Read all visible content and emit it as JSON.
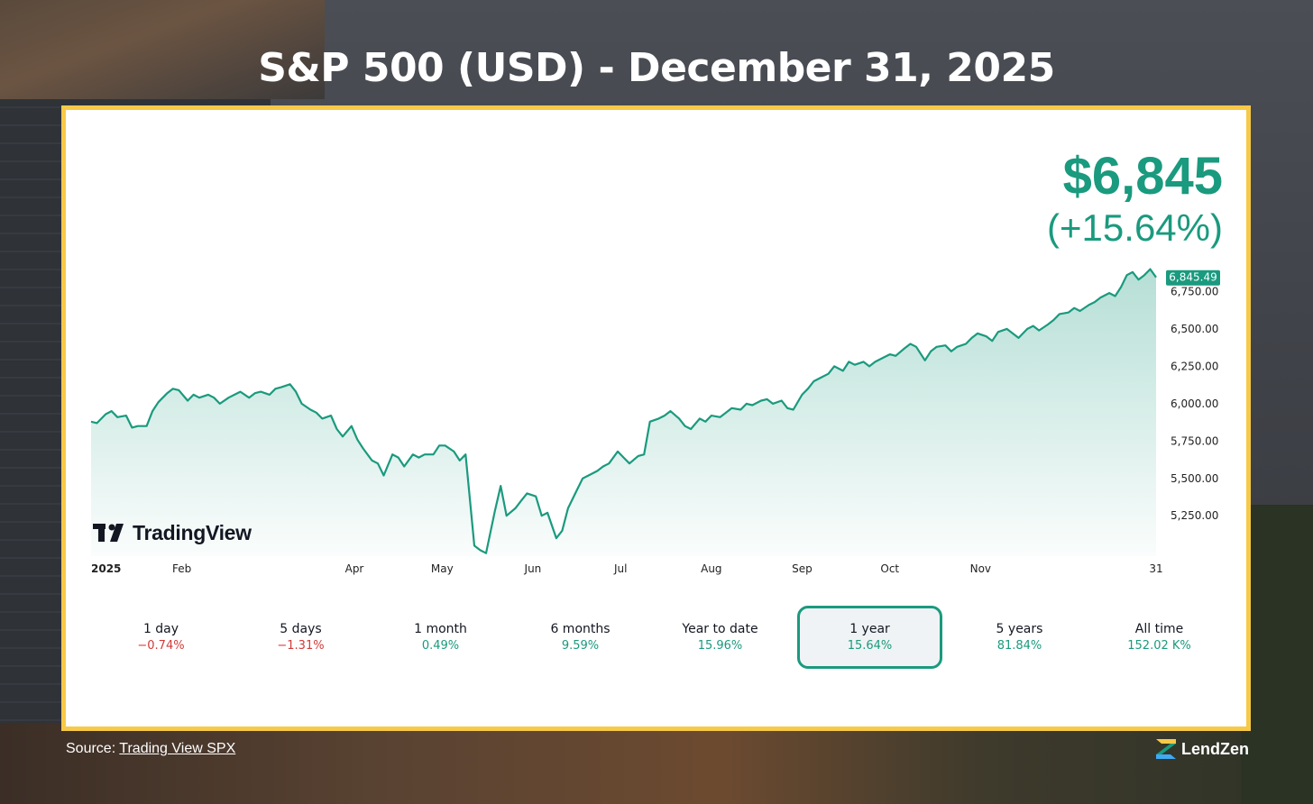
{
  "title": "S&P 500 (USD) - December 31, 2025",
  "price": {
    "value": "$6,845",
    "change": "(+15.64%)"
  },
  "last_label": "6,845.49",
  "brand_logo": "TradingView",
  "ranges": [
    {
      "label": "1 day",
      "value": "−0.74%",
      "trend": "neg",
      "active": false
    },
    {
      "label": "5 days",
      "value": "−1.31%",
      "trend": "neg",
      "active": false
    },
    {
      "label": "1 month",
      "value": "0.49%",
      "trend": "pos",
      "active": false
    },
    {
      "label": "6 months",
      "value": "9.59%",
      "trend": "pos",
      "active": false
    },
    {
      "label": "Year to date",
      "value": "15.96%",
      "trend": "pos",
      "active": false
    },
    {
      "label": "1 year",
      "value": "15.64%",
      "trend": "pos",
      "active": true
    },
    {
      "label": "5 years",
      "value": "81.84%",
      "trend": "pos",
      "active": false
    },
    {
      "label": "All time",
      "value": "152.02 K%",
      "trend": "pos",
      "active": false
    }
  ],
  "source": {
    "prefix": "Source: ",
    "link_text": "Trading View SPX"
  },
  "footer_brand": "LendZen",
  "colors": {
    "accent": "#1a9a7e",
    "negative": "#d23a3a",
    "frame": "#f7c948"
  },
  "chart_data": {
    "type": "area",
    "title": "",
    "xlabel": "",
    "ylabel": "",
    "ylim": [
      4980,
      6970
    ],
    "yticks": [
      {
        "value": 5250,
        "label": "5,250.00"
      },
      {
        "value": 5500,
        "label": "5,500.00"
      },
      {
        "value": 5750,
        "label": "5,750.00"
      },
      {
        "value": 6000,
        "label": "6,000.00"
      },
      {
        "value": 6250,
        "label": "6,250.00"
      },
      {
        "value": 6500,
        "label": "6,500.00"
      },
      {
        "value": 6750,
        "label": "6,750.00"
      }
    ],
    "xticks": [
      {
        "date": "2025-01-01",
        "label": "2025"
      },
      {
        "date": "2025-02-01",
        "label": "Feb"
      },
      {
        "date": "2025-04-01",
        "label": "Apr"
      },
      {
        "date": "2025-05-01",
        "label": "May"
      },
      {
        "date": "2025-06-01",
        "label": "Jun"
      },
      {
        "date": "2025-07-01",
        "label": "Jul"
      },
      {
        "date": "2025-08-01",
        "label": "Aug"
      },
      {
        "date": "2025-09-01",
        "label": "Sep"
      },
      {
        "date": "2025-10-01",
        "label": "Oct"
      },
      {
        "date": "2025-11-01",
        "label": "Nov"
      },
      {
        "date": "2025-12-31",
        "label": "31"
      }
    ],
    "series": [
      {
        "points": [
          [
            "2025-01-01",
            5880
          ],
          [
            "2025-01-03",
            5870
          ],
          [
            "2025-01-06",
            5930
          ],
          [
            "2025-01-08",
            5950
          ],
          [
            "2025-01-10",
            5910
          ],
          [
            "2025-01-13",
            5920
          ],
          [
            "2025-01-15",
            5840
          ],
          [
            "2025-01-17",
            5850
          ],
          [
            "2025-01-20",
            5850
          ],
          [
            "2025-01-22",
            5950
          ],
          [
            "2025-01-24",
            6010
          ],
          [
            "2025-01-27",
            6070
          ],
          [
            "2025-01-29",
            6100
          ],
          [
            "2025-01-31",
            6090
          ],
          [
            "2025-02-03",
            6020
          ],
          [
            "2025-02-05",
            6060
          ],
          [
            "2025-02-07",
            6040
          ],
          [
            "2025-02-10",
            6060
          ],
          [
            "2025-02-12",
            6040
          ],
          [
            "2025-02-14",
            6000
          ],
          [
            "2025-02-17",
            6040
          ],
          [
            "2025-02-19",
            6060
          ],
          [
            "2025-02-21",
            6080
          ],
          [
            "2025-02-24",
            6040
          ],
          [
            "2025-02-26",
            6070
          ],
          [
            "2025-02-28",
            6080
          ],
          [
            "2025-03-03",
            6060
          ],
          [
            "2025-03-05",
            6100
          ],
          [
            "2025-03-07",
            6110
          ],
          [
            "2025-03-10",
            6130
          ],
          [
            "2025-03-12",
            6080
          ],
          [
            "2025-03-14",
            6000
          ],
          [
            "2025-03-17",
            5960
          ],
          [
            "2025-03-19",
            5940
          ],
          [
            "2025-03-21",
            5900
          ],
          [
            "2025-03-24",
            5920
          ],
          [
            "2025-03-26",
            5830
          ],
          [
            "2025-03-28",
            5780
          ],
          [
            "2025-03-31",
            5850
          ],
          [
            "2025-04-02",
            5760
          ],
          [
            "2025-04-04",
            5700
          ],
          [
            "2025-04-07",
            5620
          ],
          [
            "2025-04-09",
            5600
          ],
          [
            "2025-04-11",
            5520
          ],
          [
            "2025-04-14",
            5660
          ],
          [
            "2025-04-16",
            5640
          ],
          [
            "2025-04-18",
            5580
          ],
          [
            "2025-04-21",
            5660
          ],
          [
            "2025-04-23",
            5640
          ],
          [
            "2025-04-25",
            5660
          ],
          [
            "2025-04-28",
            5660
          ],
          [
            "2025-04-30",
            5720
          ],
          [
            "2025-05-02",
            5720
          ],
          [
            "2025-05-05",
            5680
          ],
          [
            "2025-05-07",
            5620
          ],
          [
            "2025-05-09",
            5660
          ],
          [
            "2025-05-12",
            5050
          ],
          [
            "2025-05-14",
            5020
          ],
          [
            "2025-05-16",
            5000
          ],
          [
            "2025-05-19",
            5280
          ],
          [
            "2025-05-21",
            5450
          ],
          [
            "2025-05-23",
            5250
          ],
          [
            "2025-05-26",
            5300
          ],
          [
            "2025-05-28",
            5350
          ],
          [
            "2025-05-30",
            5400
          ],
          [
            "2025-06-02",
            5380
          ],
          [
            "2025-06-04",
            5250
          ],
          [
            "2025-06-06",
            5270
          ],
          [
            "2025-06-09",
            5100
          ],
          [
            "2025-06-11",
            5150
          ],
          [
            "2025-06-13",
            5300
          ],
          [
            "2025-06-16",
            5420
          ],
          [
            "2025-06-18",
            5500
          ],
          [
            "2025-06-20",
            5520
          ],
          [
            "2025-06-23",
            5550
          ],
          [
            "2025-06-25",
            5580
          ],
          [
            "2025-06-27",
            5600
          ],
          [
            "2025-06-30",
            5680
          ],
          [
            "2025-07-02",
            5640
          ],
          [
            "2025-07-04",
            5600
          ],
          [
            "2025-07-07",
            5650
          ],
          [
            "2025-07-09",
            5660
          ],
          [
            "2025-07-11",
            5880
          ],
          [
            "2025-07-14",
            5900
          ],
          [
            "2025-07-16",
            5920
          ],
          [
            "2025-07-18",
            5950
          ],
          [
            "2025-07-21",
            5900
          ],
          [
            "2025-07-23",
            5850
          ],
          [
            "2025-07-25",
            5830
          ],
          [
            "2025-07-28",
            5900
          ],
          [
            "2025-07-30",
            5880
          ],
          [
            "2025-08-01",
            5920
          ],
          [
            "2025-08-04",
            5910
          ],
          [
            "2025-08-06",
            5940
          ],
          [
            "2025-08-08",
            5970
          ],
          [
            "2025-08-11",
            5960
          ],
          [
            "2025-08-13",
            6000
          ],
          [
            "2025-08-15",
            5990
          ],
          [
            "2025-08-18",
            6020
          ],
          [
            "2025-08-20",
            6030
          ],
          [
            "2025-08-22",
            6000
          ],
          [
            "2025-08-25",
            6020
          ],
          [
            "2025-08-27",
            5970
          ],
          [
            "2025-08-29",
            5960
          ],
          [
            "2025-09-01",
            6060
          ],
          [
            "2025-09-03",
            6100
          ],
          [
            "2025-09-05",
            6150
          ],
          [
            "2025-09-08",
            6180
          ],
          [
            "2025-09-10",
            6200
          ],
          [
            "2025-09-12",
            6250
          ],
          [
            "2025-09-15",
            6220
          ],
          [
            "2025-09-17",
            6280
          ],
          [
            "2025-09-19",
            6260
          ],
          [
            "2025-09-22",
            6280
          ],
          [
            "2025-09-24",
            6250
          ],
          [
            "2025-09-26",
            6280
          ],
          [
            "2025-09-29",
            6310
          ],
          [
            "2025-10-01",
            6330
          ],
          [
            "2025-10-03",
            6320
          ],
          [
            "2025-10-06",
            6370
          ],
          [
            "2025-10-08",
            6400
          ],
          [
            "2025-10-10",
            6380
          ],
          [
            "2025-10-13",
            6290
          ],
          [
            "2025-10-15",
            6350
          ],
          [
            "2025-10-17",
            6380
          ],
          [
            "2025-10-20",
            6390
          ],
          [
            "2025-10-22",
            6350
          ],
          [
            "2025-10-24",
            6380
          ],
          [
            "2025-10-27",
            6400
          ],
          [
            "2025-10-29",
            6440
          ],
          [
            "2025-10-31",
            6470
          ],
          [
            "2025-11-03",
            6450
          ],
          [
            "2025-11-05",
            6420
          ],
          [
            "2025-11-07",
            6480
          ],
          [
            "2025-11-10",
            6500
          ],
          [
            "2025-11-12",
            6470
          ],
          [
            "2025-11-14",
            6440
          ],
          [
            "2025-11-17",
            6500
          ],
          [
            "2025-11-19",
            6520
          ],
          [
            "2025-11-21",
            6490
          ],
          [
            "2025-11-24",
            6530
          ],
          [
            "2025-11-26",
            6560
          ],
          [
            "2025-11-28",
            6600
          ],
          [
            "2025-12-01",
            6610
          ],
          [
            "2025-12-03",
            6640
          ],
          [
            "2025-12-05",
            6620
          ],
          [
            "2025-12-08",
            6660
          ],
          [
            "2025-12-10",
            6680
          ],
          [
            "2025-12-12",
            6710
          ],
          [
            "2025-12-15",
            6740
          ],
          [
            "2025-12-17",
            6720
          ],
          [
            "2025-12-19",
            6780
          ],
          [
            "2025-12-21",
            6860
          ],
          [
            "2025-12-23",
            6880
          ],
          [
            "2025-12-25",
            6830
          ],
          [
            "2025-12-27",
            6860
          ],
          [
            "2025-12-29",
            6900
          ],
          [
            "2025-12-31",
            6845
          ]
        ]
      }
    ]
  }
}
